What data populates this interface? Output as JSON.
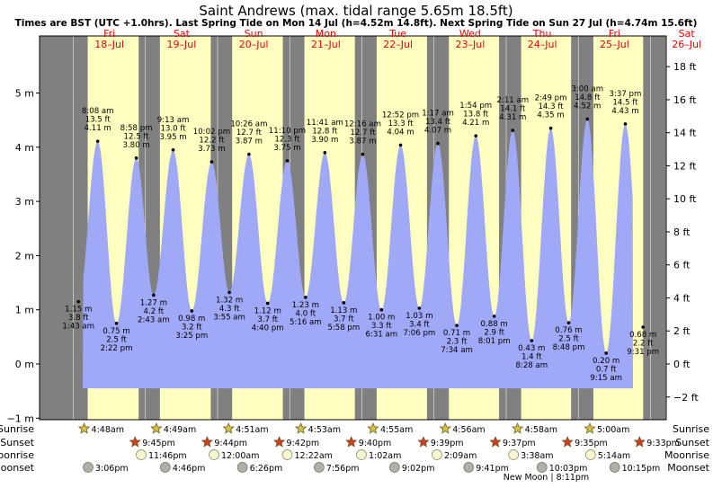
{
  "title": "Saint Andrews (max. tidal range 5.65m 18.5ft)",
  "subtitle": "Times are BST (UTC +1.0hrs). Last Spring Tide on Mon 14 Jul (h=4.52m 14.8ft). Next Spring Tide on Sun 27 Jul (h=4.74m 15.6ft)",
  "colors": {
    "night": "#808080",
    "day": "#ffffc0",
    "water": "#a0a8f8",
    "day_label": "#e00000",
    "sun_icon": "#d8c040",
    "sunset_icon": "#d04020",
    "moon_icon": "#f8f8d0",
    "moonset_icon": "#b0b0a8"
  },
  "chart_data": {
    "type": "area",
    "title": "Saint Andrews (max. tidal range 5.65m 18.5ft)",
    "xlabel": "",
    "ylabel": "",
    "ylim_m": [
      -1,
      5.8
    ],
    "yticks_left": [
      "−1 m",
      "0 m",
      "1 m",
      "2 m",
      "3 m",
      "4 m",
      "5 m"
    ],
    "yticks_right": [
      "−2 ft",
      "0 ft",
      "2 ft",
      "4 ft",
      "6 ft",
      "8 ft",
      "10 ft",
      "12 ft",
      "14 ft",
      "16 ft",
      "18 ft"
    ],
    "days": [
      {
        "dow": "Fri",
        "date": "18–Jul"
      },
      {
        "dow": "Sat",
        "date": "19–Jul"
      },
      {
        "dow": "Sun",
        "date": "20–Jul"
      },
      {
        "dow": "Mon",
        "date": "21–Jul"
      },
      {
        "dow": "Tue",
        "date": "22–Jul"
      },
      {
        "dow": "Wed",
        "date": "23–Jul"
      },
      {
        "dow": "Thu",
        "date": "24–Jul"
      },
      {
        "dow": "Fri",
        "date": "25–Jul"
      },
      {
        "dow": "Sat",
        "date": "26–Jul"
      }
    ],
    "tides": [
      {
        "type": "low",
        "date": "18-Jul",
        "time": "1:43 am",
        "m": 1.15,
        "ft": "3.8 ft",
        "l1": "1.15 m",
        "l2": "3.8 ft",
        "l3": "1:43 am"
      },
      {
        "type": "high",
        "date": "18-Jul",
        "time": "8:08 am",
        "m": 4.11,
        "ft": "13.5 ft",
        "l1": "8:08 am",
        "l2": "13.5 ft",
        "l3": "4.11 m"
      },
      {
        "type": "low",
        "date": "18-Jul",
        "time": "2:22 pm",
        "m": 0.75,
        "ft": "2.5 ft",
        "l1": "0.75 m",
        "l2": "2.5 ft",
        "l3": "2:22 pm"
      },
      {
        "type": "high",
        "date": "18-Jul",
        "time": "8:58 pm",
        "m": 3.8,
        "ft": "12.5 ft",
        "l1": "8:58 pm",
        "l2": "12.5 ft",
        "l3": "3.80 m"
      },
      {
        "type": "low",
        "date": "19-Jul",
        "time": "2:43 am",
        "m": 1.27,
        "ft": "4.2 ft",
        "l1": "1.27 m",
        "l2": "4.2 ft",
        "l3": "2:43 am"
      },
      {
        "type": "high",
        "date": "19-Jul",
        "time": "9:13 am",
        "m": 3.95,
        "ft": "13.0 ft",
        "l1": "9:13 am",
        "l2": "13.0 ft",
        "l3": "3.95 m"
      },
      {
        "type": "low",
        "date": "19-Jul",
        "time": "3:25 pm",
        "m": 0.98,
        "ft": "3.2 ft",
        "l1": "0.98 m",
        "l2": "3.2 ft",
        "l3": "3:25 pm"
      },
      {
        "type": "high",
        "date": "19-Jul",
        "time": "10:02 pm",
        "m": 3.73,
        "ft": "12.2 ft",
        "l1": "10:02 pm",
        "l2": "12.2 ft",
        "l3": "3.73 m"
      },
      {
        "type": "low",
        "date": "20-Jul",
        "time": "3:55 am",
        "m": 1.32,
        "ft": "4.3 ft",
        "l1": "1.32 m",
        "l2": "4.3 ft",
        "l3": "3:55 am"
      },
      {
        "type": "high",
        "date": "20-Jul",
        "time": "10:26 am",
        "m": 3.87,
        "ft": "12.7 ft",
        "l1": "10:26 am",
        "l2": "12.7 ft",
        "l3": "3.87 m"
      },
      {
        "type": "low",
        "date": "20-Jul",
        "time": "4:40 pm",
        "m": 1.12,
        "ft": "3.7 ft",
        "l1": "1.12 m",
        "l2": "3.7 ft",
        "l3": "4:40 pm"
      },
      {
        "type": "high",
        "date": "20-Jul",
        "time": "11:10 pm",
        "m": 3.75,
        "ft": "12.3 ft",
        "l1": "11:10 pm",
        "l2": "12.3 ft",
        "l3": "3.75 m"
      },
      {
        "type": "low",
        "date": "21-Jul",
        "time": "5:16 am",
        "m": 1.23,
        "ft": "4.0 ft",
        "l1": "1.23 m",
        "l2": "4.0 ft",
        "l3": "5:16 am"
      },
      {
        "type": "high",
        "date": "21-Jul",
        "time": "11:41 am",
        "m": 3.9,
        "ft": "12.8 ft",
        "l1": "11:41 am",
        "l2": "12.8 ft",
        "l3": "3.90 m"
      },
      {
        "type": "low",
        "date": "21-Jul",
        "time": "5:58 pm",
        "m": 1.13,
        "ft": "3.7 ft",
        "l1": "1.13 m",
        "l2": "3.7 ft",
        "l3": "5:58 pm"
      },
      {
        "type": "high",
        "date": "22-Jul",
        "time": "12:16 am",
        "m": 3.87,
        "ft": "12.7 ft",
        "l1": "12:16 am",
        "l2": "12.7 ft",
        "l3": "3.87 m"
      },
      {
        "type": "low",
        "date": "22-Jul",
        "time": "6:31 am",
        "m": 1.0,
        "ft": "3.3 ft",
        "l1": "1.00 m",
        "l2": "3.3 ft",
        "l3": "6:31 am"
      },
      {
        "type": "high",
        "date": "22-Jul",
        "time": "12:52 pm",
        "m": 4.04,
        "ft": "13.3 ft",
        "l1": "12:52 pm",
        "l2": "13.3 ft",
        "l3": "4.04 m"
      },
      {
        "type": "low",
        "date": "22-Jul",
        "time": "7:06 pm",
        "m": 1.03,
        "ft": "3.4 ft",
        "l1": "1.03 m",
        "l2": "3.4 ft",
        "l3": "7:06 pm"
      },
      {
        "type": "high",
        "date": "23-Jul",
        "time": "1:17 am",
        "m": 4.07,
        "ft": "13.4 ft",
        "l1": "1:17 am",
        "l2": "13.4 ft",
        "l3": "4.07 m"
      },
      {
        "type": "low",
        "date": "23-Jul",
        "time": "7:34 am",
        "m": 0.71,
        "ft": "2.3 ft",
        "l1": "0.71 m",
        "l2": "2.3 ft",
        "l3": "7:34 am"
      },
      {
        "type": "high",
        "date": "23-Jul",
        "time": "1:54 pm",
        "m": 4.21,
        "ft": "13.8 ft",
        "l1": "1:54 pm",
        "l2": "13.8 ft",
        "l3": "4.21 m"
      },
      {
        "type": "low",
        "date": "23-Jul",
        "time": "8:01 pm",
        "m": 0.88,
        "ft": "2.9 ft",
        "l1": "0.88 m",
        "l2": "2.9 ft",
        "l3": "8:01 pm"
      },
      {
        "type": "high",
        "date": "24-Jul",
        "time": "2:11 am",
        "m": 4.31,
        "ft": "14.1 ft",
        "l1": "2:11 am",
        "l2": "14.1 ft",
        "l3": "4.31 m"
      },
      {
        "type": "low",
        "date": "24-Jul",
        "time": "8:28 am",
        "m": 0.43,
        "ft": "1.4 ft",
        "l1": "0.43 m",
        "l2": "1.4 ft",
        "l3": "8:28 am"
      },
      {
        "type": "high",
        "date": "24-Jul",
        "time": "2:49 pm",
        "m": 4.35,
        "ft": "14.3 ft",
        "l1": "2:49 pm",
        "l2": "14.3 ft",
        "l3": "4.35 m"
      },
      {
        "type": "low",
        "date": "24-Jul",
        "time": "8:48 pm",
        "m": 0.76,
        "ft": "2.5 ft",
        "l1": "0.76 m",
        "l2": "2.5 ft",
        "l3": "8:48 pm"
      },
      {
        "type": "high",
        "date": "25-Jul",
        "time": "3:00 am",
        "m": 4.52,
        "ft": "14.8 ft",
        "l1": "3:00 am",
        "l2": "14.8 ft",
        "l3": "4.52 m"
      },
      {
        "type": "low",
        "date": "25-Jul",
        "time": "9:15 am",
        "m": 0.2,
        "ft": "0.7 ft",
        "l1": "0.20 m",
        "l2": "0.7 ft",
        "l3": "9:15 am"
      },
      {
        "type": "high",
        "date": "25-Jul",
        "time": "3:37 pm",
        "m": 4.43,
        "ft": "14.5 ft",
        "l1": "3:37 pm",
        "l2": "14.5 ft",
        "l3": "4.43 m"
      },
      {
        "type": "low",
        "date": "25-Jul",
        "time": "9:31 pm",
        "m": 0.68,
        "ft": "2.2 ft",
        "l1": "0.68 m",
        "l2": "2.2 ft",
        "l3": "9:31 pm"
      }
    ]
  },
  "legend_labels": {
    "sunrise": "Sunrise",
    "sunset": "Sunset",
    "moonrise": "Moonrise",
    "moonset": "Moonset"
  },
  "sunrise": [
    {
      "date": "18-Jul",
      "time": "4:48am"
    },
    {
      "date": "19-Jul",
      "time": "4:49am"
    },
    {
      "date": "20-Jul",
      "time": "4:51am"
    },
    {
      "date": "21-Jul",
      "time": "4:53am"
    },
    {
      "date": "22-Jul",
      "time": "4:55am"
    },
    {
      "date": "23-Jul",
      "time": "4:56am"
    },
    {
      "date": "24-Jul",
      "time": "4:58am"
    },
    {
      "date": "25-Jul",
      "time": "5:00am"
    }
  ],
  "sunset": [
    {
      "date": "18-Jul",
      "time": "9:45pm"
    },
    {
      "date": "19-Jul",
      "time": "9:44pm"
    },
    {
      "date": "20-Jul",
      "time": "9:42pm"
    },
    {
      "date": "21-Jul",
      "time": "9:40pm"
    },
    {
      "date": "22-Jul",
      "time": "9:39pm"
    },
    {
      "date": "23-Jul",
      "time": "9:37pm"
    },
    {
      "date": "24-Jul",
      "time": "9:35pm"
    },
    {
      "date": "25-Jul",
      "time": "9:33pm"
    }
  ],
  "moonrise": [
    {
      "date": "18-Jul",
      "time": "11:46pm"
    },
    {
      "date": "20-Jul",
      "time": "12:00am"
    },
    {
      "date": "21-Jul",
      "time": "12:22am"
    },
    {
      "date": "22-Jul",
      "time": "1:02am"
    },
    {
      "date": "23-Jul",
      "time": "2:09am"
    },
    {
      "date": "24-Jul",
      "time": "3:38am"
    },
    {
      "date": "25-Jul",
      "time": "5:14am"
    }
  ],
  "moonset": [
    {
      "date": "18-Jul",
      "time": "3:06pm"
    },
    {
      "date": "19-Jul",
      "time": "4:46pm"
    },
    {
      "date": "20-Jul",
      "time": "6:26pm"
    },
    {
      "date": "21-Jul",
      "time": "7:56pm"
    },
    {
      "date": "22-Jul",
      "time": "9:02pm"
    },
    {
      "date": "23-Jul",
      "time": "9:41pm"
    },
    {
      "date": "24-Jul",
      "time": "10:03pm"
    },
    {
      "date": "25-Jul",
      "time": "10:15pm"
    }
  ],
  "new_moon": {
    "date": "24-Jul",
    "time": "8:11pm",
    "label": "New Moon | 8:11pm"
  }
}
